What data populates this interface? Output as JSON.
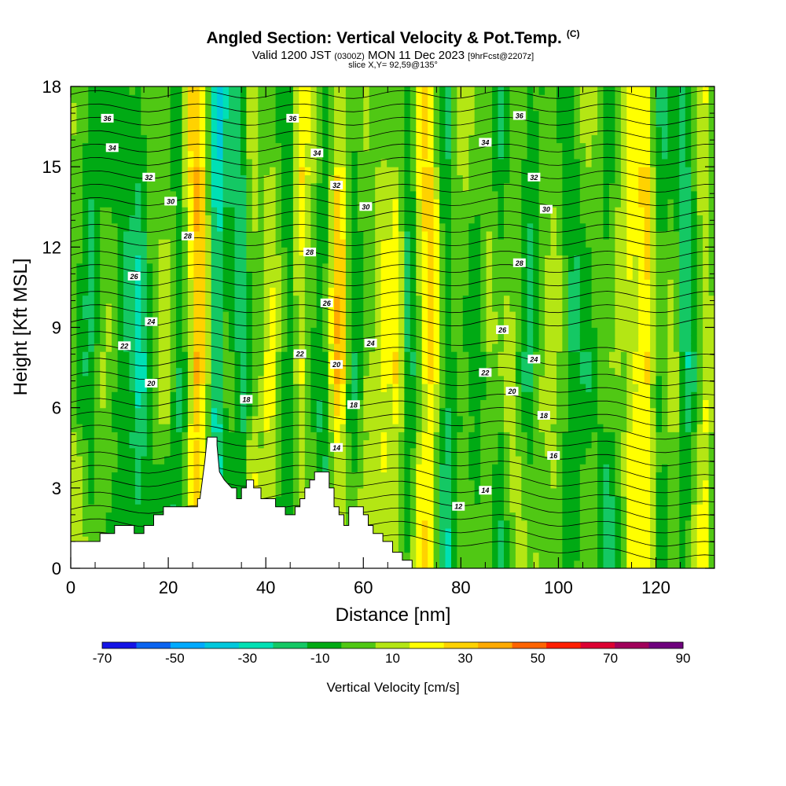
{
  "title": {
    "main": "Angled Section: Vertical Velocity & Pot.Temp.",
    "main_tag": "(C)",
    "sub_a": "Valid 1200 JST",
    "sub_b": "(0300Z)",
    "sub_c": "MON 11 Dec 2023",
    "sub_d": "[9hrFcst@2207z]",
    "slice": "slice X,Y= 92,59@135°"
  },
  "chart_data": {
    "type": "heatmap",
    "xlabel": "Distance [nm]",
    "ylabel": "Height [Kft MSL]",
    "xlim": [
      0,
      132
    ],
    "ylim": [
      0,
      18
    ],
    "x_ticks": [
      0,
      20,
      40,
      60,
      80,
      100,
      120
    ],
    "y_ticks": [
      0,
      3,
      6,
      9,
      12,
      15,
      18
    ],
    "colorbar": {
      "label": "Vertical Velocity [cm/s]",
      "tick_values": [
        -70,
        -50,
        -30,
        -10,
        10,
        30,
        50,
        70,
        90
      ],
      "bins": [
        -70,
        -60,
        -50,
        -40,
        -30,
        -20,
        -10,
        0,
        10,
        20,
        30,
        40,
        50,
        60,
        70,
        80,
        90
      ],
      "colors": [
        "#1414e6",
        "#0a64f0",
        "#00aaff",
        "#00c8dc",
        "#00e0b4",
        "#14c864",
        "#00aa14",
        "#50c814",
        "#b4e614",
        "#ffff00",
        "#ffd200",
        "#ffaa00",
        "#ff6400",
        "#ff1e00",
        "#dc0032",
        "#a0005a",
        "#6e007d"
      ]
    },
    "terrain_profile": [
      [
        0,
        1
      ],
      [
        6,
        1
      ],
      [
        6,
        1.3
      ],
      [
        9,
        1.3
      ],
      [
        9,
        1.6
      ],
      [
        13,
        1.6
      ],
      [
        13,
        1.3
      ],
      [
        15,
        1.3
      ],
      [
        15,
        1.6
      ],
      [
        17,
        1.6
      ],
      [
        17,
        2
      ],
      [
        19,
        2
      ],
      [
        19,
        2.3
      ],
      [
        26,
        2.3
      ],
      [
        26,
        2.6
      ],
      [
        26.5,
        2.6
      ],
      [
        27,
        3.3
      ],
      [
        27.5,
        4
      ],
      [
        28,
        4.9
      ],
      [
        30,
        4.9
      ],
      [
        30,
        4.6
      ],
      [
        30.5,
        3.6
      ],
      [
        31.5,
        3.3
      ],
      [
        33,
        3
      ],
      [
        34,
        3
      ],
      [
        34,
        2.6
      ],
      [
        35,
        2.6
      ],
      [
        35,
        3
      ],
      [
        36,
        3
      ],
      [
        36,
        3.3
      ],
      [
        37.5,
        3.3
      ],
      [
        37.5,
        3
      ],
      [
        39,
        3
      ],
      [
        39,
        2.6
      ],
      [
        42,
        2.6
      ],
      [
        42,
        2.3
      ],
      [
        44,
        2.3
      ],
      [
        44,
        2
      ],
      [
        46,
        2
      ],
      [
        46,
        2.3
      ],
      [
        47,
        2.3
      ],
      [
        47,
        2.6
      ],
      [
        48,
        2.6
      ],
      [
        48,
        3
      ],
      [
        49,
        3
      ],
      [
        49,
        3.3
      ],
      [
        50,
        3.3
      ],
      [
        50,
        3.6
      ],
      [
        53,
        3.6
      ],
      [
        53,
        3
      ],
      [
        54,
        3
      ],
      [
        54,
        2.3
      ],
      [
        55,
        2.3
      ],
      [
        55,
        2
      ],
      [
        56,
        2
      ],
      [
        56,
        1.6
      ],
      [
        57,
        1.6
      ],
      [
        57,
        2.3
      ],
      [
        60,
        2.3
      ],
      [
        60,
        2
      ],
      [
        61,
        2
      ],
      [
        61,
        1.6
      ],
      [
        62,
        1.6
      ],
      [
        62,
        1.3
      ],
      [
        64,
        1.3
      ],
      [
        64,
        1
      ],
      [
        66,
        1
      ],
      [
        66,
        0.6
      ],
      [
        68,
        0.6
      ],
      [
        68,
        0.3
      ],
      [
        70,
        0.3
      ],
      [
        70,
        0
      ],
      [
        132,
        0
      ]
    ],
    "isentrope_labels": [
      {
        "v": "36",
        "x": 7.5,
        "y": 16.8
      },
      {
        "v": "36",
        "x": 45.5,
        "y": 16.8
      },
      {
        "v": "36",
        "x": 92,
        "y": 16.9
      },
      {
        "v": "34",
        "x": 8.5,
        "y": 15.7
      },
      {
        "v": "34",
        "x": 50.5,
        "y": 15.5
      },
      {
        "v": "34",
        "x": 85,
        "y": 15.9
      },
      {
        "v": "32",
        "x": 16,
        "y": 14.6
      },
      {
        "v": "32",
        "x": 54.5,
        "y": 14.3
      },
      {
        "v": "32",
        "x": 95,
        "y": 14.6
      },
      {
        "v": "30",
        "x": 20.5,
        "y": 13.7
      },
      {
        "v": "30",
        "x": 60.5,
        "y": 13.5
      },
      {
        "v": "30",
        "x": 97.5,
        "y": 13.4
      },
      {
        "v": "28",
        "x": 24,
        "y": 12.4
      },
      {
        "v": "28",
        "x": 49,
        "y": 11.8
      },
      {
        "v": "28",
        "x": 92,
        "y": 11.4
      },
      {
        "v": "26",
        "x": 13,
        "y": 10.9
      },
      {
        "v": "26",
        "x": 52.5,
        "y": 9.9
      },
      {
        "v": "26",
        "x": 88.5,
        "y": 8.9
      },
      {
        "v": "24",
        "x": 16.5,
        "y": 9.2
      },
      {
        "v": "24",
        "x": 61.5,
        "y": 8.4
      },
      {
        "v": "24",
        "x": 95,
        "y": 7.8
      },
      {
        "v": "22",
        "x": 11,
        "y": 8.3
      },
      {
        "v": "22",
        "x": 47,
        "y": 8.0
      },
      {
        "v": "22",
        "x": 85,
        "y": 7.3
      },
      {
        "v": "20",
        "x": 16.5,
        "y": 6.9
      },
      {
        "v": "20",
        "x": 54.5,
        "y": 7.6
      },
      {
        "v": "20",
        "x": 90.5,
        "y": 6.6
      },
      {
        "v": "18",
        "x": 36,
        "y": 6.3
      },
      {
        "v": "18",
        "x": 58,
        "y": 6.1
      },
      {
        "v": "18",
        "x": 97,
        "y": 5.7
      },
      {
        "v": "16",
        "x": 99,
        "y": 4.2
      },
      {
        "v": "14",
        "x": 54.5,
        "y": 4.5
      },
      {
        "v": "14",
        "x": 85,
        "y": 2.9
      },
      {
        "v": "12",
        "x": 79.5,
        "y": 2.3
      }
    ]
  }
}
